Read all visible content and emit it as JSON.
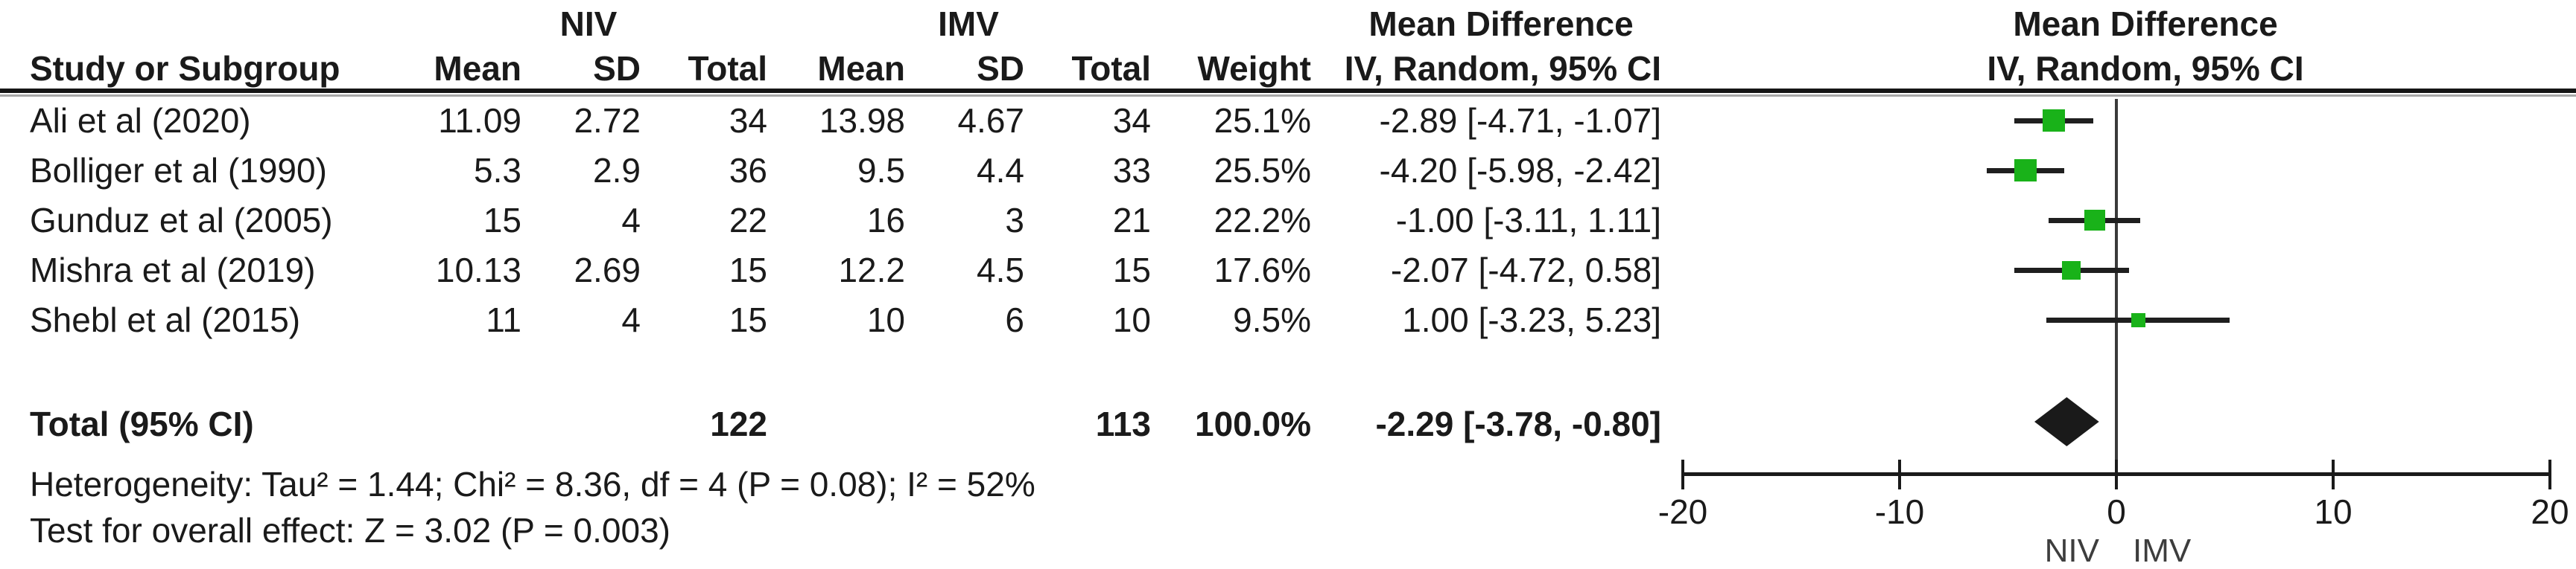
{
  "table": {
    "group_headers": {
      "niv": "NIV",
      "imv": "IMV",
      "md": "Mean Difference"
    },
    "col_headers": {
      "study": "Study or Subgroup",
      "niv_mean": "Mean",
      "niv_sd": "SD",
      "niv_total": "Total",
      "imv_mean": "Mean",
      "imv_sd": "SD",
      "imv_total": "Total",
      "weight": "Weight",
      "md_ci": "IV, Random, 95% CI"
    },
    "rows": [
      {
        "study": "Ali et al (2020)",
        "niv_mean": "11.09",
        "niv_sd": "2.72",
        "niv_total": "34",
        "imv_mean": "13.98",
        "imv_sd": "4.67",
        "imv_total": "34",
        "weight": "25.1%",
        "md_ci": "-2.89 [-4.71, -1.07]"
      },
      {
        "study": "Bolliger et al (1990)",
        "niv_mean": "5.3",
        "niv_sd": "2.9",
        "niv_total": "36",
        "imv_mean": "9.5",
        "imv_sd": "4.4",
        "imv_total": "33",
        "weight": "25.5%",
        "md_ci": "-4.20 [-5.98, -2.42]"
      },
      {
        "study": "Gunduz et al (2005)",
        "niv_mean": "15",
        "niv_sd": "4",
        "niv_total": "22",
        "imv_mean": "16",
        "imv_sd": "3",
        "imv_total": "21",
        "weight": "22.2%",
        "md_ci": "-1.00 [-3.11, 1.11]"
      },
      {
        "study": "Mishra et al (2019)",
        "niv_mean": "10.13",
        "niv_sd": "2.69",
        "niv_total": "15",
        "imv_mean": "12.2",
        "imv_sd": "4.5",
        "imv_total": "15",
        "weight": "17.6%",
        "md_ci": "-2.07 [-4.72, 0.58]"
      },
      {
        "study": "Shebl et al (2015)",
        "niv_mean": "11",
        "niv_sd": "4",
        "niv_total": "15",
        "imv_mean": "10",
        "imv_sd": "6",
        "imv_total": "10",
        "weight": "9.5%",
        "md_ci": "1.00 [-3.23, 5.23]"
      }
    ],
    "total_row": {
      "label": "Total (95% CI)",
      "niv_total": "122",
      "imv_total": "113",
      "weight": "100.0%",
      "md_ci": "-2.29 [-3.78, -0.80]"
    },
    "footnotes": {
      "heterogeneity": "Heterogeneity: Tau² = 1.44; Chi² = 8.36, df = 4 (P = 0.08); I² = 52%",
      "overall_effect": "Test for overall effect: Z = 3.02 (P = 0.003)"
    }
  },
  "plot_header": {
    "line1": "Mean Difference",
    "line2": "IV, Random, 95% CI"
  },
  "chart_data": {
    "type": "forest",
    "effect_measure": "Mean Difference",
    "model": "IV, Random, 95% CI",
    "studies": [
      {
        "name": "Ali et al (2020)",
        "md": -2.89,
        "ci_low": -4.71,
        "ci_high": -1.07,
        "weight_pct": 25.1
      },
      {
        "name": "Bolliger et al (1990)",
        "md": -4.2,
        "ci_low": -5.98,
        "ci_high": -2.42,
        "weight_pct": 25.5
      },
      {
        "name": "Gunduz et al (2005)",
        "md": -1.0,
        "ci_low": -3.11,
        "ci_high": 1.11,
        "weight_pct": 22.2
      },
      {
        "name": "Mishra et al (2019)",
        "md": -2.07,
        "ci_low": -4.72,
        "ci_high": 0.58,
        "weight_pct": 17.6
      },
      {
        "name": "Shebl et al (2015)",
        "md": 1.0,
        "ci_low": -3.23,
        "ci_high": 5.23,
        "weight_pct": 9.5
      }
    ],
    "total": {
      "md": -2.29,
      "ci_low": -3.78,
      "ci_high": -0.8,
      "weight_pct": 100.0
    },
    "heterogeneity": {
      "tau2": 1.44,
      "chi2": 8.36,
      "df": 4,
      "p": 0.08,
      "i2_pct": 52
    },
    "overall_effect": {
      "z": 3.02,
      "p": 0.003
    },
    "axis": {
      "range": [
        -20,
        20
      ],
      "ticks": [
        "-20",
        "-10",
        "0",
        "10",
        "20"
      ],
      "tick_values": [
        -20,
        -10,
        0,
        10,
        20
      ],
      "left_label": "NIV",
      "right_label": "IMV",
      "grid": false
    },
    "colors": {
      "marker_green": "#19b219",
      "line_black": "#1a1a1a"
    }
  }
}
